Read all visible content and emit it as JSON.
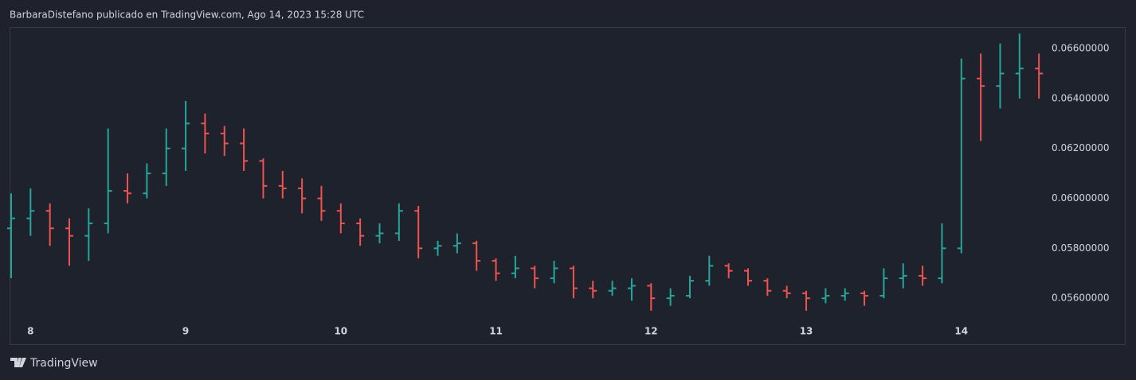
{
  "chart_data": {
    "type": "ohlc",
    "title": "BarbaraDistefano publicado en TradingView.com, Ago 14, 2023 15:28 UTC",
    "source": "TradingView",
    "up_color": "#26a69a",
    "down_color": "#ef5350",
    "x": [
      7.875,
      8,
      8.125,
      8.25,
      8.375,
      8.5,
      8.625,
      8.75,
      8.875,
      9,
      9.125,
      9.25,
      9.375,
      9.5,
      9.625,
      9.75,
      9.875,
      10,
      10.125,
      10.25,
      10.375,
      10.5,
      10.625,
      10.75,
      10.875,
      11,
      11.125,
      11.25,
      11.375,
      11.5,
      11.625,
      11.75,
      11.875,
      12,
      12.125,
      12.25,
      12.375,
      12.5,
      12.625,
      12.75,
      12.875,
      13,
      13.125,
      13.25,
      13.375,
      13.5,
      13.625,
      13.75,
      13.875,
      14,
      14.125,
      14.25,
      14.375,
      14.5
    ],
    "open": [
      0.0588,
      0.0592,
      0.0595,
      0.0588,
      0.0585,
      0.059,
      0.0603,
      0.0602,
      0.061,
      0.062,
      0.063,
      0.0626,
      0.0622,
      0.0615,
      0.0605,
      0.0604,
      0.06,
      0.0595,
      0.059,
      0.0585,
      0.0586,
      0.0595,
      0.058,
      0.0581,
      0.0582,
      0.0575,
      0.057,
      0.0572,
      0.0568,
      0.0572,
      0.0564,
      0.0563,
      0.0564,
      0.0565,
      0.056,
      0.0561,
      0.0567,
      0.0573,
      0.0571,
      0.0567,
      0.0563,
      0.0562,
      0.056,
      0.0561,
      0.0562,
      0.0561,
      0.0568,
      0.0569,
      0.0568,
      0.058,
      0.0648,
      0.0645,
      0.065,
      0.0652
    ],
    "high": [
      0.0602,
      0.0604,
      0.0598,
      0.0592,
      0.0596,
      0.0628,
      0.061,
      0.0614,
      0.0628,
      0.0639,
      0.0634,
      0.0629,
      0.0628,
      0.0616,
      0.0611,
      0.0608,
      0.0605,
      0.0598,
      0.0592,
      0.059,
      0.0598,
      0.0597,
      0.0583,
      0.0586,
      0.0583,
      0.0576,
      0.0577,
      0.0573,
      0.0575,
      0.0573,
      0.0567,
      0.0567,
      0.0568,
      0.0566,
      0.0564,
      0.0569,
      0.0577,
      0.0574,
      0.0572,
      0.0568,
      0.0565,
      0.0563,
      0.0564,
      0.0564,
      0.0563,
      0.0572,
      0.0574,
      0.0573,
      0.059,
      0.0656,
      0.0658,
      0.0662,
      0.0666,
      0.0658
    ],
    "low": [
      0.0568,
      0.0585,
      0.0581,
      0.0573,
      0.0575,
      0.0586,
      0.0598,
      0.06,
      0.0605,
      0.0611,
      0.0618,
      0.0617,
      0.0611,
      0.06,
      0.06,
      0.0594,
      0.0591,
      0.0586,
      0.0581,
      0.0582,
      0.0583,
      0.0576,
      0.0577,
      0.0578,
      0.0571,
      0.0567,
      0.0568,
      0.0564,
      0.0566,
      0.056,
      0.056,
      0.0561,
      0.0559,
      0.0555,
      0.0557,
      0.056,
      0.0565,
      0.0568,
      0.0565,
      0.0561,
      0.056,
      0.0555,
      0.0558,
      0.0559,
      0.0557,
      0.056,
      0.0564,
      0.0565,
      0.0566,
      0.0578,
      0.0623,
      0.0636,
      0.064,
      0.064
    ],
    "close": [
      0.0592,
      0.0595,
      0.0588,
      0.0585,
      0.059,
      0.0603,
      0.0602,
      0.061,
      0.062,
      0.063,
      0.0626,
      0.0622,
      0.0615,
      0.0605,
      0.0604,
      0.06,
      0.0595,
      0.059,
      0.0585,
      0.0586,
      0.0595,
      0.058,
      0.0581,
      0.0582,
      0.0575,
      0.057,
      0.0572,
      0.0568,
      0.0572,
      0.0564,
      0.0563,
      0.0564,
      0.0565,
      0.056,
      0.0561,
      0.0567,
      0.0573,
      0.0571,
      0.0567,
      0.0563,
      0.0562,
      0.056,
      0.0561,
      0.0562,
      0.0561,
      0.0568,
      0.0569,
      0.0568,
      0.058,
      0.0648,
      0.0645,
      0.065,
      0.0652,
      0.065
    ],
    "xlim": [
      7.87,
      14.53
    ],
    "xticks": [
      8,
      9,
      10,
      11,
      12,
      13,
      14
    ],
    "ylim": [
      0.05521,
      0.06683
    ],
    "yticks": [
      {
        "value": 0.056,
        "label": "0.05600000"
      },
      {
        "value": 0.058,
        "label": "0.05800000"
      },
      {
        "value": 0.06,
        "label": "0.06000000"
      },
      {
        "value": 0.062,
        "label": "0.06200000"
      },
      {
        "value": 0.064,
        "label": "0.06400000"
      },
      {
        "value": 0.066,
        "label": "0.06600000"
      }
    ],
    "grid": false
  }
}
